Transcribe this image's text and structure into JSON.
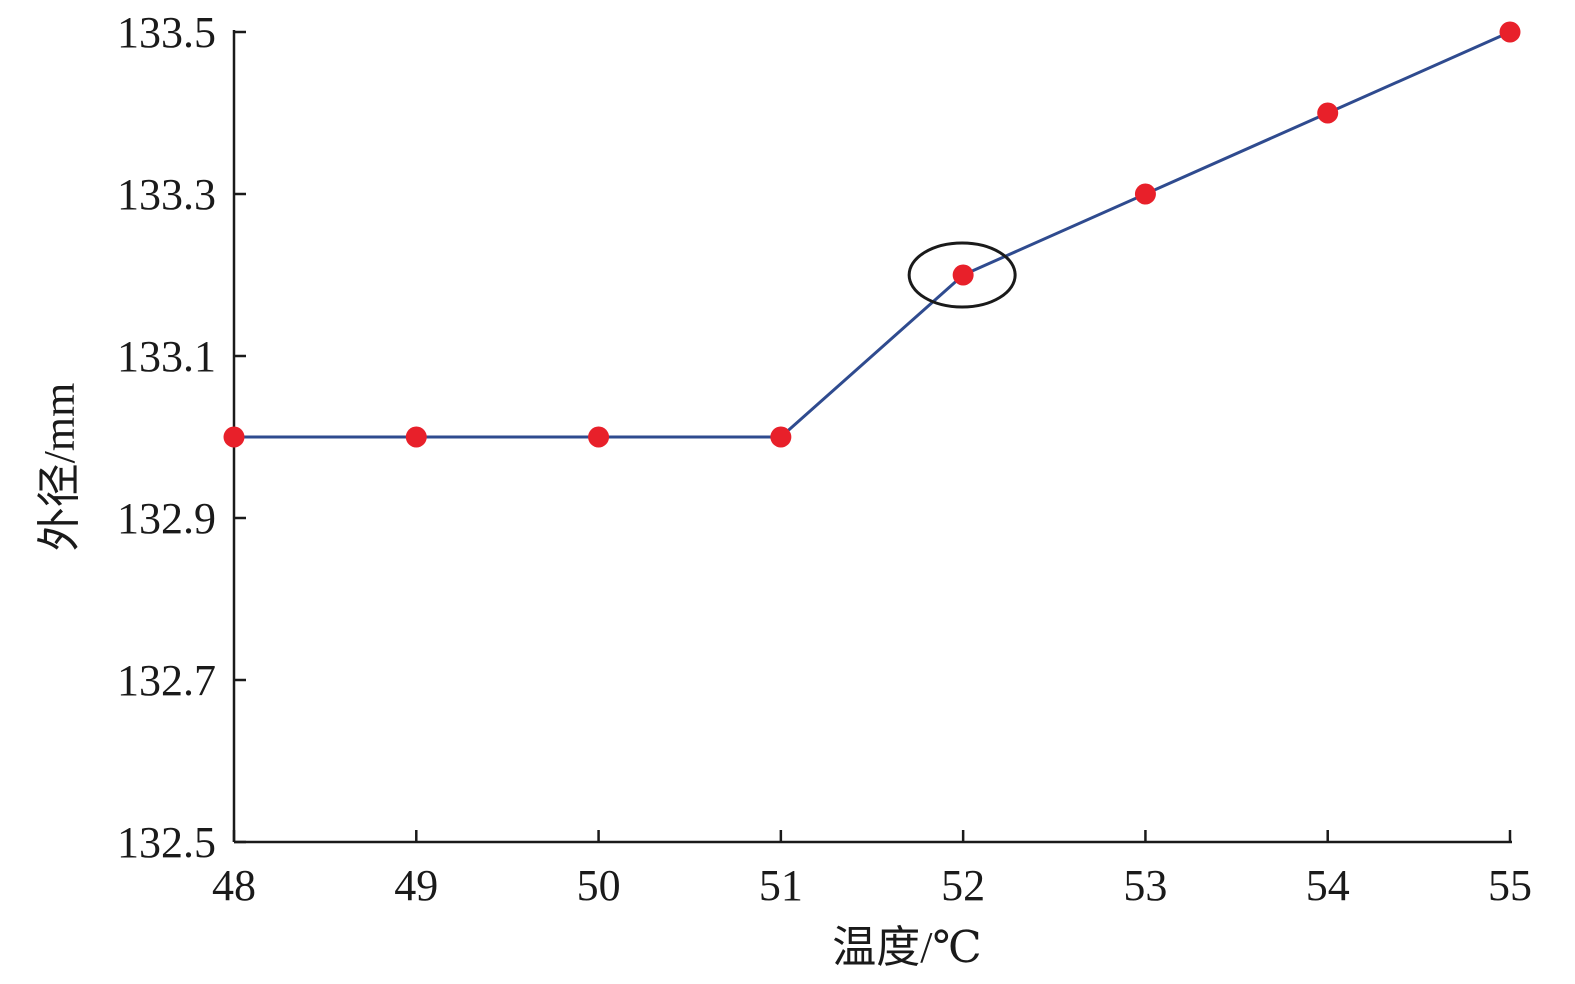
{
  "chart_data": {
    "type": "line",
    "title": "",
    "xlabel": "温度/℃",
    "ylabel": "外径/mm",
    "x": [
      48,
      49,
      50,
      51,
      52,
      53,
      54,
      55
    ],
    "series": [
      {
        "values": [
          133.0,
          133.0,
          133.0,
          133.0,
          133.2,
          133.3,
          133.4,
          133.5
        ],
        "line_color": "#2f4b8f",
        "marker_color": "#e8202a"
      }
    ],
    "xlim": [
      48,
      55
    ],
    "ylim": [
      132.5,
      133.5
    ],
    "x_ticks": [
      "48",
      "49",
      "50",
      "51",
      "52",
      "53",
      "54",
      "55"
    ],
    "y_ticks": [
      "132.5",
      "132.7",
      "132.9",
      "133.1",
      "133.3",
      "133.5"
    ],
    "grid": false,
    "legend": "none",
    "annotation": {
      "shape": "ellipse",
      "x": 52,
      "y": 133.2
    }
  }
}
